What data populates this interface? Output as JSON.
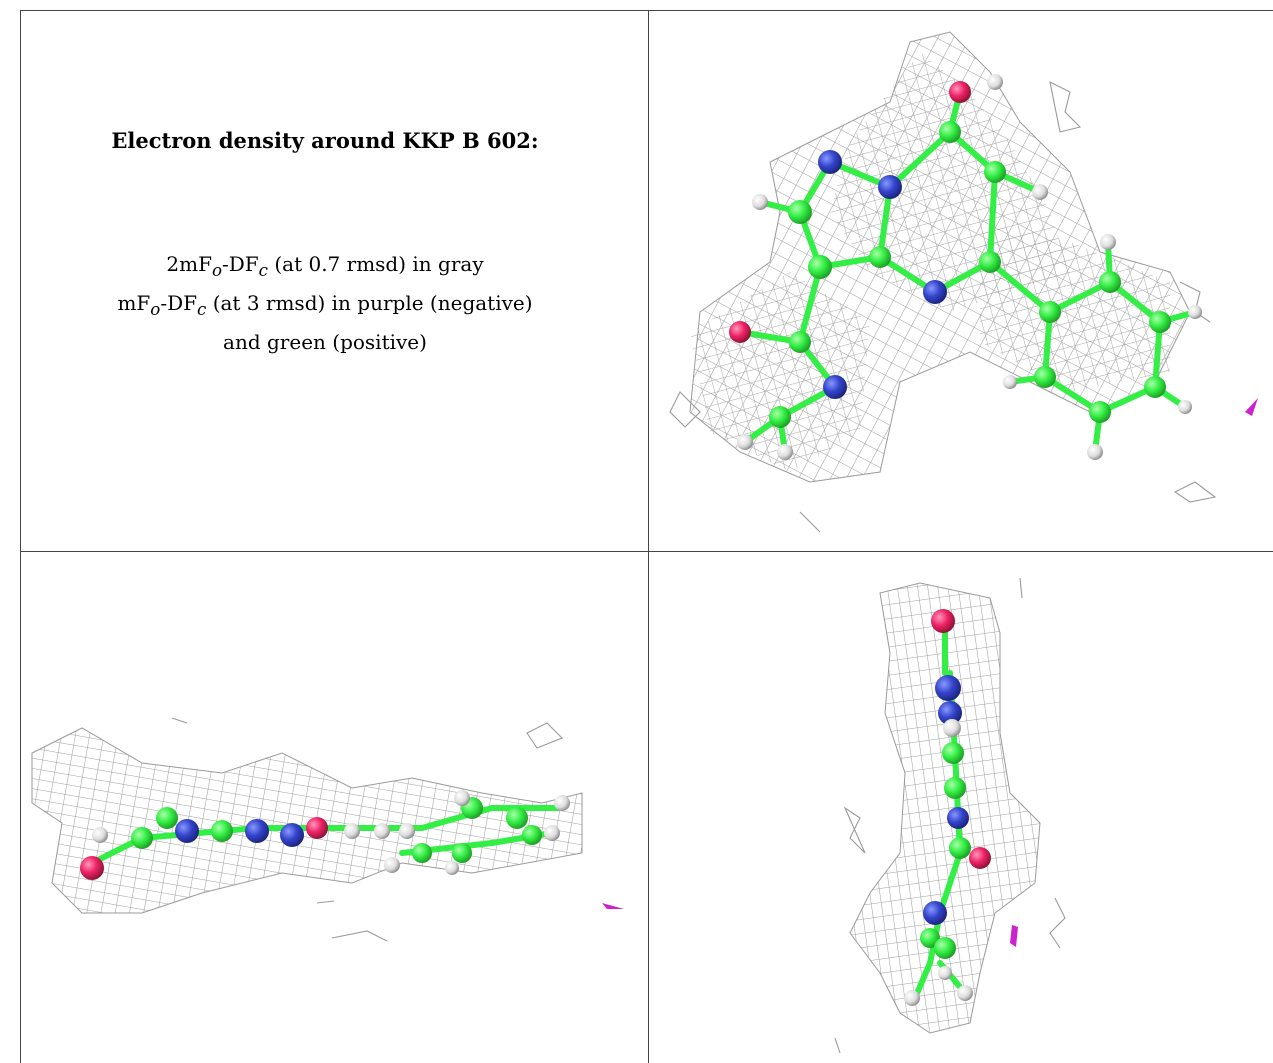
{
  "caption": {
    "title": "Electron density around KKP B 602:",
    "line1_main": "2mF",
    "line1_sub1": "o",
    "line1_mid": "-DF",
    "line1_sub2": "c",
    "line1_rest": " (at 0.7 rmsd) in gray",
    "line2_main": "mF",
    "line2_sub1": "o",
    "line2_mid": "-DF",
    "line2_sub2": "c",
    "line2_rest": " (at 3 rmsd) in purple (negative)",
    "line3": "and green (positive)"
  },
  "colors": {
    "carbon": "#33ee44",
    "nitrogen": "#3344cc",
    "oxygen": "#ee2266",
    "hydrogen": "#e8e8e8",
    "mesh": "#9a9a9a",
    "negative_density": "#cc22cc"
  },
  "panels": [
    "top-view",
    "side-view",
    "end-view"
  ]
}
